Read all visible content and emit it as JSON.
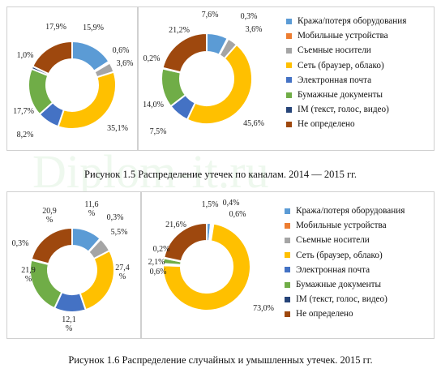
{
  "colors": [
    "#5b9bd5",
    "#ed7d31",
    "#a5a5a5",
    "#ffc000",
    "#4472c4",
    "#70ad47",
    "#264478",
    "#9e480e"
  ],
  "legend": [
    "Кража/потеря оборудования",
    "Мобильные устройства",
    "Съемные носители",
    "Сеть (браузер, облако)",
    "Электронная почта",
    "Бумажные документы",
    "IM (текст, голос, видео)",
    "Не определено"
  ],
  "captions": {
    "fig15": "Рисунок 1.5 Распределение утечек по каналам. 2014 — 2015 гг.",
    "fig16": "Рисунок 1.6 Распределение случайных и умышленных утечек. 2015 гг."
  },
  "watermark": "Diplom-it.ru",
  "chart_data": [
    {
      "type": "pie",
      "categories": [
        "Кража/потеря оборудования",
        "Мобильные устройства",
        "Съемные носители",
        "Сеть (браузер, облако)",
        "Электронная почта",
        "Бумажные документы",
        "IM (текст, голос, видео)",
        "Не определено"
      ],
      "values": [
        15.9,
        0.6,
        3.6,
        35.1,
        8.2,
        17.7,
        1.0,
        17.9
      ],
      "labels": [
        "15,9%",
        "0,6%",
        "3,6%",
        "35,1%",
        "8,2%",
        "17,7%",
        "1,0%",
        "17,9%"
      ]
    },
    {
      "type": "pie",
      "categories": [
        "Кража/потеря оборудования",
        "Мобильные устройства",
        "Съемные носители",
        "Сеть (браузер, облако)",
        "Электронная почта",
        "Бумажные документы",
        "IM (текст, голос, видео)",
        "Не определено"
      ],
      "values": [
        7.6,
        0.3,
        3.6,
        45.6,
        7.5,
        14.0,
        0.2,
        21.2
      ],
      "labels": [
        "7,6%",
        "0,3%",
        "3,6%",
        "45,6%",
        "7,5%",
        "14,0%",
        "0,2%",
        "21,2%"
      ]
    },
    {
      "type": "pie",
      "categories": [
        "Кража/потеря оборудования",
        "Мобильные устройства",
        "Съемные носители",
        "Сеть (браузер, облако)",
        "Электронная почта",
        "Бумажные документы",
        "IM (текст, голос, видео)",
        "Не определено"
      ],
      "values": [
        11.6,
        0.3,
        5.5,
        27.4,
        12.1,
        21.9,
        0.3,
        20.9
      ],
      "labels": [
        "11,6 %",
        "0,3%",
        "5,5%",
        "27,4 %",
        "12,1 %",
        "21,9 %",
        "0,3%",
        "20,9 %"
      ]
    },
    {
      "type": "pie",
      "categories": [
        "Кража/потеря оборудования",
        "Мобильные устройства",
        "Съемные носители",
        "Сеть (браузер, облако)",
        "Электронная почта",
        "Бумажные документы",
        "IM (текст, голос, видео)",
        "Не определено"
      ],
      "values": [
        1.5,
        0.4,
        0.6,
        73.0,
        0.6,
        2.1,
        0.2,
        21.6
      ],
      "labels": [
        "1,5%",
        "0,4%",
        "0,6%",
        "73,0%",
        "0,6%",
        "2,1%",
        "0,2%",
        "21,6%"
      ]
    }
  ]
}
